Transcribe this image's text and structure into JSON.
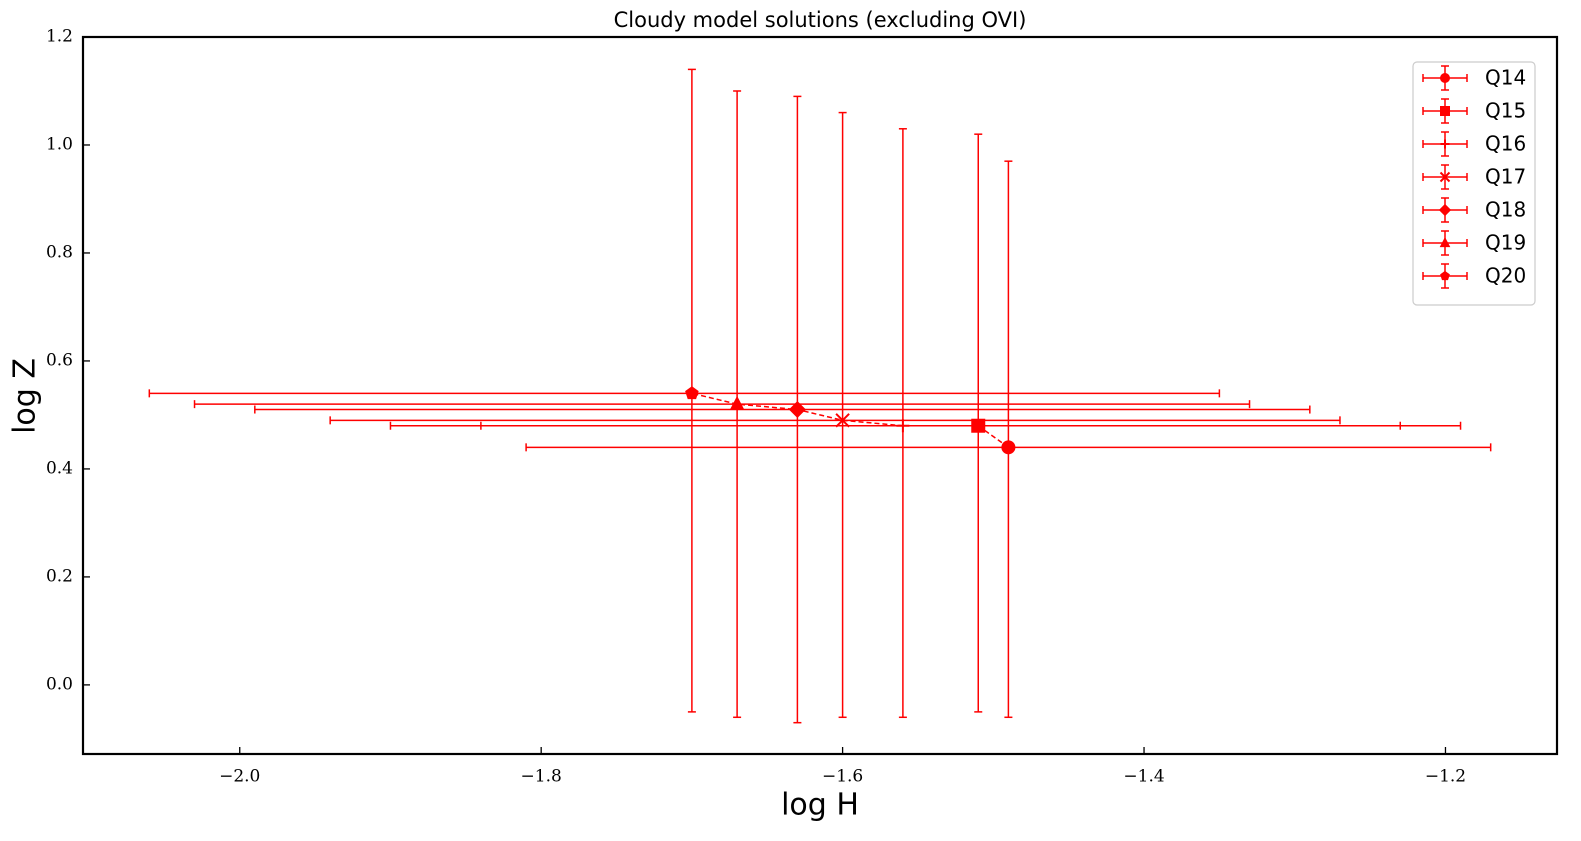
{
  "chart_data": {
    "type": "errorbar",
    "title": "Cloudy model solutions (excluding OVI)",
    "x_label": "log H",
    "y_label": "log Z",
    "xlim": [
      -2.104,
      -1.126
    ],
    "ylim": [
      -0.128,
      1.2
    ],
    "xticks": [
      {
        "value": -2.0,
        "label": "−2.0"
      },
      {
        "value": -1.8,
        "label": "−1.8"
      },
      {
        "value": -1.6,
        "label": "−1.6"
      },
      {
        "value": -1.4,
        "label": "−1.4"
      },
      {
        "value": -1.2,
        "label": "−1.2"
      }
    ],
    "yticks": [
      {
        "value": 0,
        "label": "0.0"
      },
      0.2,
      0.4,
      0.6,
      0.8,
      {
        "value": 1.0,
        "label": "1.0"
      },
      1.2
    ],
    "legend": "upper right",
    "connect_line": true,
    "series": [
      {
        "name": "Q14",
        "color": "#ff0000",
        "marker": "circle",
        "x": -1.49,
        "y": 0.44,
        "xerr": [
          0.32,
          0.32
        ],
        "yerr": [
          0.5,
          0.53
        ]
      },
      {
        "name": "Q15",
        "color": "#ff0000",
        "marker": "square",
        "x": -1.51,
        "y": 0.48,
        "xerr": [
          0.33,
          0.28
        ],
        "yerr": [
          0.53,
          0.54
        ]
      },
      {
        "name": "Q16",
        "color": "#ff0000",
        "marker": "plus",
        "x": -1.56,
        "y": 0.48,
        "xerr": [
          0.34,
          0.37
        ],
        "yerr": [
          0.54,
          0.55
        ]
      },
      {
        "name": "Q17",
        "color": "#ff0000",
        "marker": "x",
        "x": -1.6,
        "y": 0.49,
        "xerr": [
          0.34,
          0.33
        ],
        "yerr": [
          0.55,
          0.57
        ]
      },
      {
        "name": "Q18",
        "color": "#ff0000",
        "marker": "diamond",
        "x": -1.63,
        "y": 0.51,
        "xerr": [
          0.36,
          0.34
        ],
        "yerr": [
          0.58,
          0.58
        ]
      },
      {
        "name": "Q19",
        "color": "#ff0000",
        "marker": "triangle",
        "x": -1.67,
        "y": 0.52,
        "xerr": [
          0.36,
          0.34
        ],
        "yerr": [
          0.58,
          0.58
        ]
      },
      {
        "name": "Q20",
        "color": "#ff0000",
        "marker": "pentagon",
        "x": -1.7,
        "y": 0.54,
        "xerr": [
          0.36,
          0.35
        ],
        "yerr": [
          0.59,
          0.6
        ]
      }
    ]
  }
}
